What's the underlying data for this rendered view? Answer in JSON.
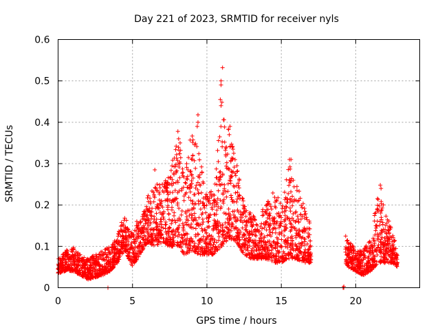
{
  "chart_data": {
    "type": "scatter",
    "title": "Day 221 of 2023, SRMTID for receiver nyls",
    "xlabel": "GPS time / hours",
    "ylabel": "SRMTID / TECUs",
    "xlim": [
      0,
      24.3
    ],
    "ylim": [
      0,
      0.6
    ],
    "x_ticks": [
      0,
      5,
      10,
      15,
      20
    ],
    "x_tick_labels": [
      "0",
      "5",
      "10",
      "15",
      "20"
    ],
    "y_ticks": [
      0,
      0.1,
      0.2,
      0.3,
      0.4,
      0.5,
      0.6
    ],
    "y_tick_labels": [
      "0",
      "0.1",
      "0.2",
      "0.3",
      "0.4",
      "0.5",
      "0.6"
    ],
    "grid": true,
    "marker": "plus",
    "series_color": "#ff0000",
    "envelope_x": [
      0,
      0.5,
      1,
      1.5,
      2,
      2.5,
      3,
      3.5,
      4,
      4.25,
      4.5,
      5,
      5.5,
      6,
      6.5,
      7,
      7.5,
      8,
      8.5,
      9,
      9.5,
      10,
      10.5,
      11,
      11.5,
      12,
      12.5,
      13,
      13.5,
      14,
      14.5,
      15,
      15.5,
      16,
      16.5,
      17,
      19.3,
      19.5,
      20,
      20.5,
      21,
      21.5,
      22,
      22.5,
      22.8
    ],
    "envelope_low": [
      0.035,
      0.04,
      0.04,
      0.03,
      0.02,
      0.025,
      0.03,
      0.04,
      0.06,
      0.08,
      0.09,
      0.05,
      0.08,
      0.11,
      0.1,
      0.11,
      0.1,
      0.1,
      0.08,
      0.09,
      0.08,
      0.08,
      0.08,
      0.1,
      0.12,
      0.11,
      0.08,
      0.07,
      0.07,
      0.07,
      0.06,
      0.06,
      0.07,
      0.07,
      0.06,
      0.06,
      0.06,
      0.05,
      0.04,
      0.03,
      0.04,
      0.06,
      0.06,
      0.06,
      0.05
    ],
    "envelope_high": [
      0.07,
      0.09,
      0.1,
      0.08,
      0.07,
      0.08,
      0.09,
      0.1,
      0.13,
      0.16,
      0.17,
      0.13,
      0.19,
      0.22,
      0.25,
      0.26,
      0.28,
      0.36,
      0.3,
      0.38,
      0.32,
      0.22,
      0.25,
      0.45,
      0.38,
      0.3,
      0.2,
      0.18,
      0.16,
      0.22,
      0.24,
      0.2,
      0.3,
      0.26,
      0.2,
      0.15,
      0.13,
      0.12,
      0.09,
      0.09,
      0.12,
      0.23,
      0.19,
      0.14,
      0.08
    ],
    "highlights": [
      {
        "x": 11.05,
        "y": 0.532
      },
      {
        "x": 10.95,
        "y": 0.5
      },
      {
        "x": 10.95,
        "y": 0.49
      },
      {
        "x": 10.9,
        "y": 0.455
      },
      {
        "x": 10.95,
        "y": 0.44
      },
      {
        "x": 9.4,
        "y": 0.418
      },
      {
        "x": 9.4,
        "y": 0.4
      },
      {
        "x": 9.35,
        "y": 0.39
      },
      {
        "x": 11.55,
        "y": 0.39
      },
      {
        "x": 11.5,
        "y": 0.37
      },
      {
        "x": 8.05,
        "y": 0.378
      },
      {
        "x": 8.1,
        "y": 0.36
      },
      {
        "x": 8.2,
        "y": 0.35
      },
      {
        "x": 11.3,
        "y": 0.34
      },
      {
        "x": 15.55,
        "y": 0.31
      },
      {
        "x": 15.65,
        "y": 0.31
      },
      {
        "x": 9.0,
        "y": 0.31
      },
      {
        "x": 6.5,
        "y": 0.285
      },
      {
        "x": 15.8,
        "y": 0.26
      },
      {
        "x": 21.65,
        "y": 0.248
      },
      {
        "x": 21.7,
        "y": 0.24
      }
    ],
    "x_axis_points": [
      {
        "x": 3.35,
        "y": 0.0
      },
      {
        "x": 19.15,
        "y": 0.0
      },
      {
        "x": 19.2,
        "y": 0.0
      },
      {
        "x": 19.2,
        "y": 0.003
      }
    ]
  }
}
